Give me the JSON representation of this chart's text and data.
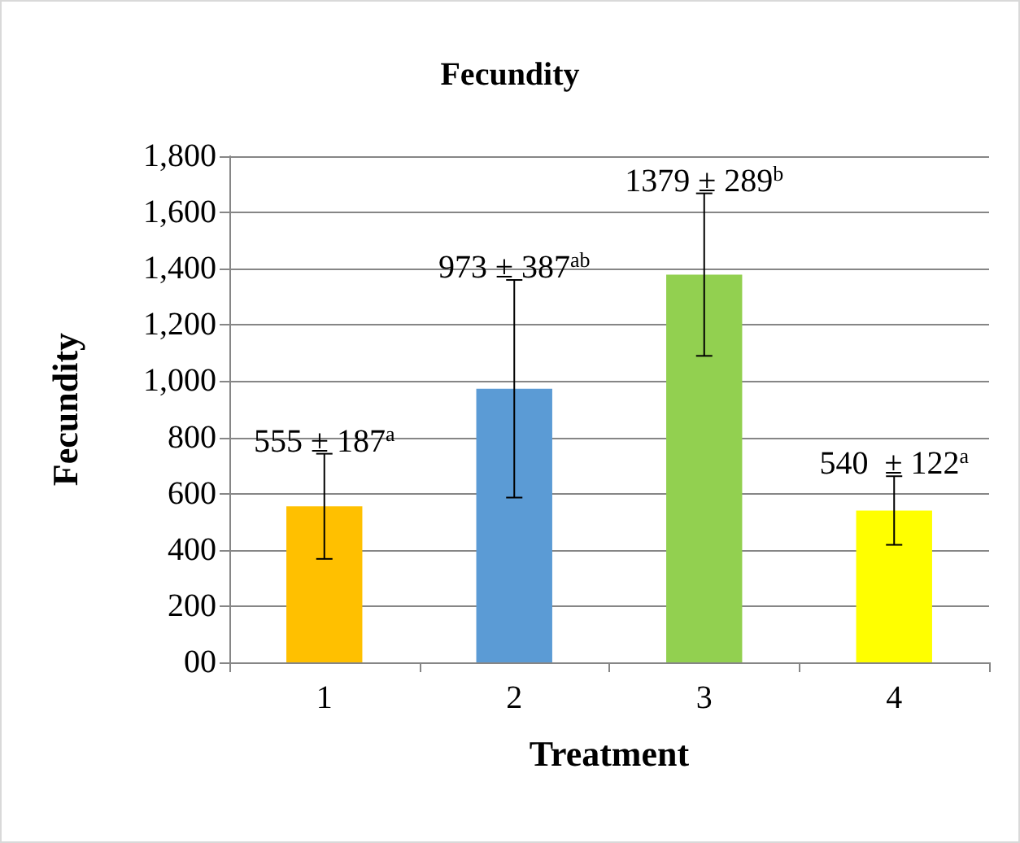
{
  "chart_data": {
    "type": "bar",
    "title": "Fecundity",
    "xlabel": "Treatment",
    "ylabel": "Fecundity",
    "categories": [
      "1",
      "2",
      "3",
      "4"
    ],
    "values": [
      555,
      973,
      1379,
      540
    ],
    "errors": [
      187,
      387,
      289,
      122
    ],
    "colors": [
      "#ffc000",
      "#5b9bd5",
      "#92d050",
      "#ffff00"
    ],
    "value_labels": [
      "555 ± 187$^{a}$",
      "973 ± 387$^{ab}$",
      "1379 ± 289$^{b}$",
      "540  ± 122$^{a}$"
    ],
    "ylim": [
      0,
      1800
    ],
    "yticks": [
      {
        "value": 0,
        "label": "00"
      },
      200,
      400,
      600,
      800,
      {
        "value": 1000,
        "label": "1,000"
      },
      {
        "value": 1200,
        "label": "1,200"
      },
      {
        "value": 1400,
        "label": "1,400"
      },
      {
        "value": 1600,
        "label": "1,600"
      },
      {
        "value": 1800,
        "label": "1,800"
      }
    ],
    "grid": "y"
  }
}
